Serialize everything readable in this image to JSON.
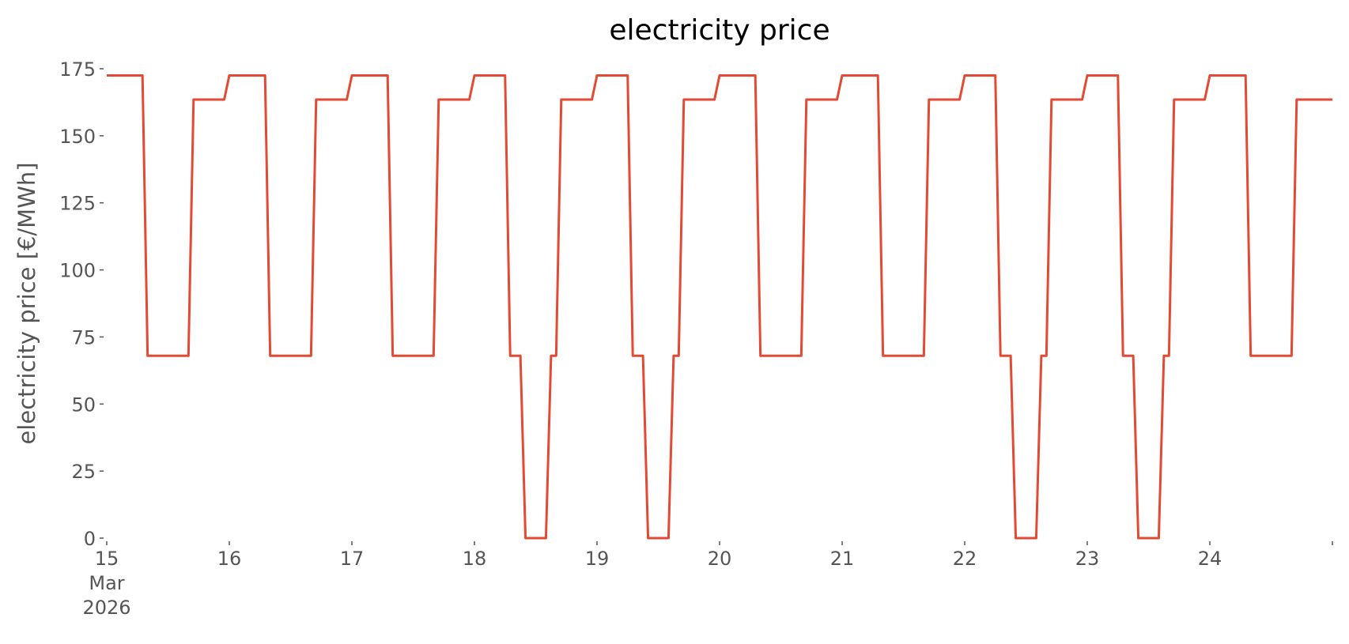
{
  "chart_data": {
    "type": "line",
    "title": "electricity price",
    "ylabel": "electricity price [€/MWh]",
    "x": [
      0,
      7,
      8,
      16,
      17,
      23,
      24,
      31,
      32,
      40,
      41,
      47,
      48,
      55,
      56,
      64,
      65,
      71,
      72,
      78,
      79,
      81,
      82,
      86,
      87,
      88,
      89,
      95,
      96,
      102,
      103,
      105,
      106,
      110,
      111,
      112,
      113,
      119,
      120,
      127,
      128,
      136,
      137,
      143,
      144,
      151,
      152,
      160,
      161,
      167,
      168,
      174,
      175,
      177,
      178,
      182,
      183,
      184,
      185,
      191,
      192,
      198,
      199,
      201,
      202,
      206,
      207,
      208,
      209,
      215,
      216,
      223,
      224,
      232,
      233,
      240
    ],
    "values": [
      172.5,
      172.5,
      68,
      68,
      163.5,
      163.5,
      172.5,
      172.5,
      68,
      68,
      163.5,
      163.5,
      172.5,
      172.5,
      68,
      68,
      163.5,
      163.5,
      172.5,
      172.5,
      68,
      68,
      0,
      0,
      68,
      68,
      163.5,
      163.5,
      172.5,
      172.5,
      68,
      68,
      0,
      0,
      68,
      68,
      163.5,
      163.5,
      172.5,
      172.5,
      68,
      68,
      163.5,
      163.5,
      172.5,
      172.5,
      68,
      68,
      163.5,
      163.5,
      172.5,
      172.5,
      68,
      68,
      0,
      0,
      68,
      68,
      163.5,
      163.5,
      172.5,
      172.5,
      68,
      68,
      0,
      0,
      68,
      68,
      163.5,
      163.5,
      172.5,
      172.5,
      68,
      68,
      163.5,
      163.5
    ],
    "color": "#e24a33",
    "xlim": [
      0,
      240
    ],
    "xticks": [
      {
        "value": 0,
        "label": "15\nMar\n2026"
      },
      {
        "value": 24,
        "label": "16"
      },
      {
        "value": 48,
        "label": "17"
      },
      {
        "value": 72,
        "label": "18"
      },
      {
        "value": 96,
        "label": "19"
      },
      {
        "value": 120,
        "label": "20"
      },
      {
        "value": 144,
        "label": "21"
      },
      {
        "value": 168,
        "label": "22"
      },
      {
        "value": 192,
        "label": "23"
      },
      {
        "value": 216,
        "label": "24"
      }
    ],
    "ylim": [
      0,
      175
    ],
    "yticks": [
      0,
      25,
      50,
      75,
      100,
      125,
      150,
      175
    ],
    "grid": false
  }
}
